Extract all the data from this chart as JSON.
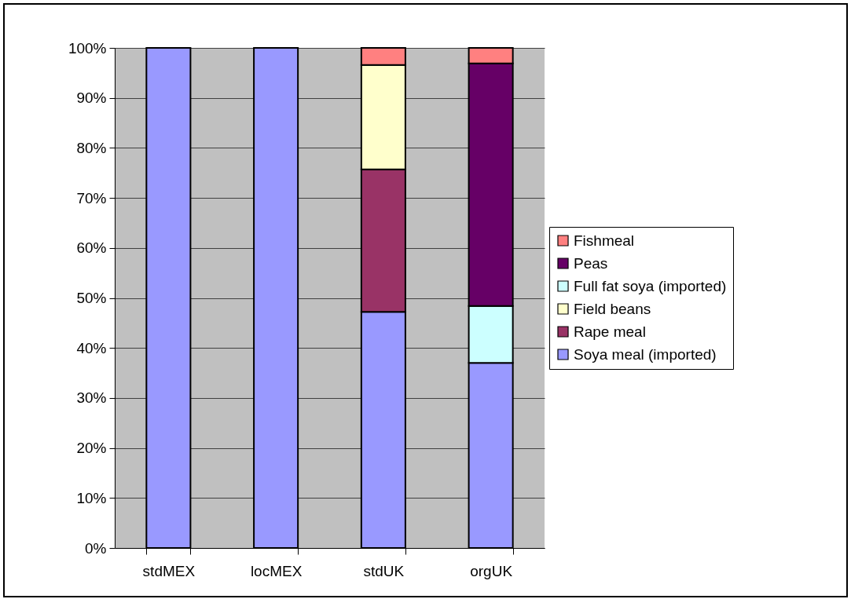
{
  "chart_data": {
    "type": "bar",
    "stacked": true,
    "categories": [
      "stdMEX",
      "locMEX",
      "stdUK",
      "orgUK"
    ],
    "series": [
      {
        "name": "Soya meal (imported)",
        "color": "#9999ff",
        "values": [
          100,
          100,
          47.2,
          37.0
        ]
      },
      {
        "name": "Rape meal",
        "color": "#993366",
        "values": [
          null,
          null,
          28.5,
          null
        ]
      },
      {
        "name": "Field beans",
        "color": "#ffffcc",
        "values": [
          null,
          null,
          20.9,
          null
        ]
      },
      {
        "name": "Full fat soya (imported)",
        "color": "#ccffff",
        "values": [
          null,
          null,
          null,
          11.4
        ]
      },
      {
        "name": "Peas",
        "color": "#660066",
        "values": [
          null,
          null,
          null,
          48.5
        ]
      },
      {
        "name": "Fishmeal",
        "color": "#ff8080",
        "values": [
          null,
          null,
          3.4,
          3.1
        ]
      }
    ],
    "ylim": [
      0,
      100
    ],
    "yticks": [
      {
        "value": 0,
        "label": "0%"
      },
      {
        "value": 10,
        "label": "10%"
      },
      {
        "value": 20,
        "label": "20%"
      },
      {
        "value": 30,
        "label": "30%"
      },
      {
        "value": 40,
        "label": "40%"
      },
      {
        "value": 50,
        "label": "50%"
      },
      {
        "value": 60,
        "label": "60%"
      },
      {
        "value": 70,
        "label": "70%"
      },
      {
        "value": 80,
        "label": "80%"
      },
      {
        "value": 90,
        "label": "90%"
      },
      {
        "value": 100,
        "label": "100%"
      }
    ],
    "grid": "y",
    "legend": "right"
  }
}
